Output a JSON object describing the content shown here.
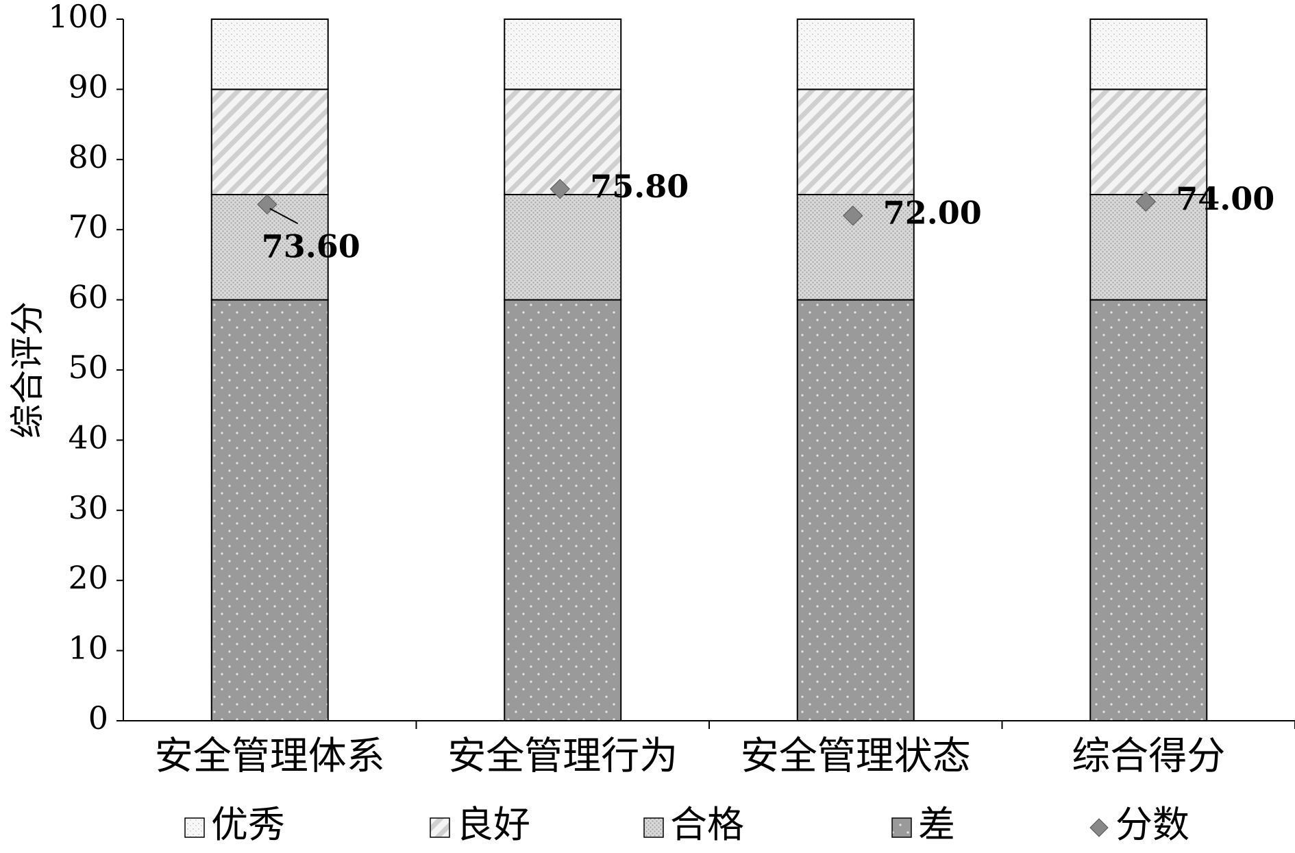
{
  "chart_data": {
    "type": "bar",
    "stacked": true,
    "categories": [
      "安全管理体系",
      "安全管理行为",
      "安全管理状态",
      "综合得分"
    ],
    "ylabel": "综合评分",
    "ylim": [
      0,
      100
    ],
    "yticks": [
      0,
      10,
      20,
      30,
      40,
      50,
      60,
      70,
      80,
      90,
      100
    ],
    "grid": false,
    "legend_position": "bottom",
    "series": [
      {
        "name": "差",
        "values": [
          60,
          60,
          60,
          60
        ],
        "pattern": "dark-dotted",
        "color": "#999999"
      },
      {
        "name": "合格",
        "values": [
          15,
          15,
          15,
          15
        ],
        "pattern": "fine-dotted",
        "color": "#c8c8c8"
      },
      {
        "name": "良好",
        "values": [
          15,
          15,
          15,
          15
        ],
        "pattern": "diagonal-stripes",
        "color": "#d6d6d6"
      },
      {
        "name": "优秀",
        "values": [
          10,
          10,
          10,
          10
        ],
        "pattern": "sparse-dotted",
        "color": "#e8e8e8"
      }
    ],
    "scores": {
      "name": "分数",
      "values": [
        73.6,
        75.8,
        72.0,
        74.0
      ],
      "labels": [
        "73.60",
        "75.80",
        "72.00",
        "74.00"
      ],
      "marker": "diamond",
      "color": "#888888"
    },
    "legend_order": [
      "优秀",
      "良好",
      "合格",
      "差",
      "分数"
    ]
  }
}
